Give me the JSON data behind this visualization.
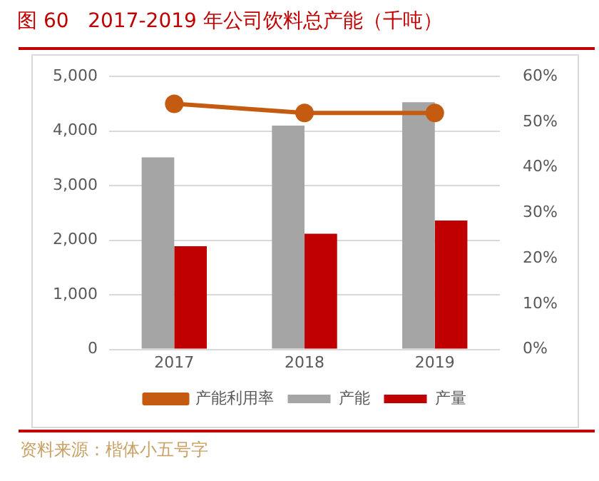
{
  "chart_data": {
    "type": "bar",
    "title": "图 60   2017-2019 年公司饮料总产能（千吨）",
    "categories": [
      "2017",
      "2018",
      "2019"
    ],
    "series": [
      {
        "name": "产能",
        "color": "#a5a5a5",
        "values": [
          3520,
          4100,
          4530
        ]
      },
      {
        "name": "产量",
        "color": "#c00000",
        "values": [
          1890,
          2120,
          2360
        ]
      },
      {
        "name": "产能利用率",
        "type": "line",
        "axis": "y2",
        "color": "#c55a11",
        "values": [
          54,
          52,
          52
        ]
      }
    ],
    "ylim": [
      0,
      5000
    ],
    "yticks": [
      {
        "value": 0,
        "label": "0"
      },
      {
        "value": 1000,
        "label": "1,000"
      },
      {
        "value": 2000,
        "label": "2,000"
      },
      {
        "value": 3000,
        "label": "3,000"
      },
      {
        "value": 4000,
        "label": "4,000"
      },
      {
        "value": 5000,
        "label": "5,000"
      }
    ],
    "y2lim": [
      0,
      60
    ],
    "y2ticks": [
      {
        "value": 0,
        "label": "0%"
      },
      {
        "value": 10,
        "label": "10%"
      },
      {
        "value": 20,
        "label": "20%"
      },
      {
        "value": 30,
        "label": "30%"
      },
      {
        "value": 40,
        "label": "40%"
      },
      {
        "value": 50,
        "label": "50%"
      },
      {
        "value": 60,
        "label": "60%"
      }
    ],
    "grid": "y",
    "legend": "bottom",
    "marker": "circle",
    "annotations": [
      "资料来源：楷体小五号字"
    ]
  }
}
